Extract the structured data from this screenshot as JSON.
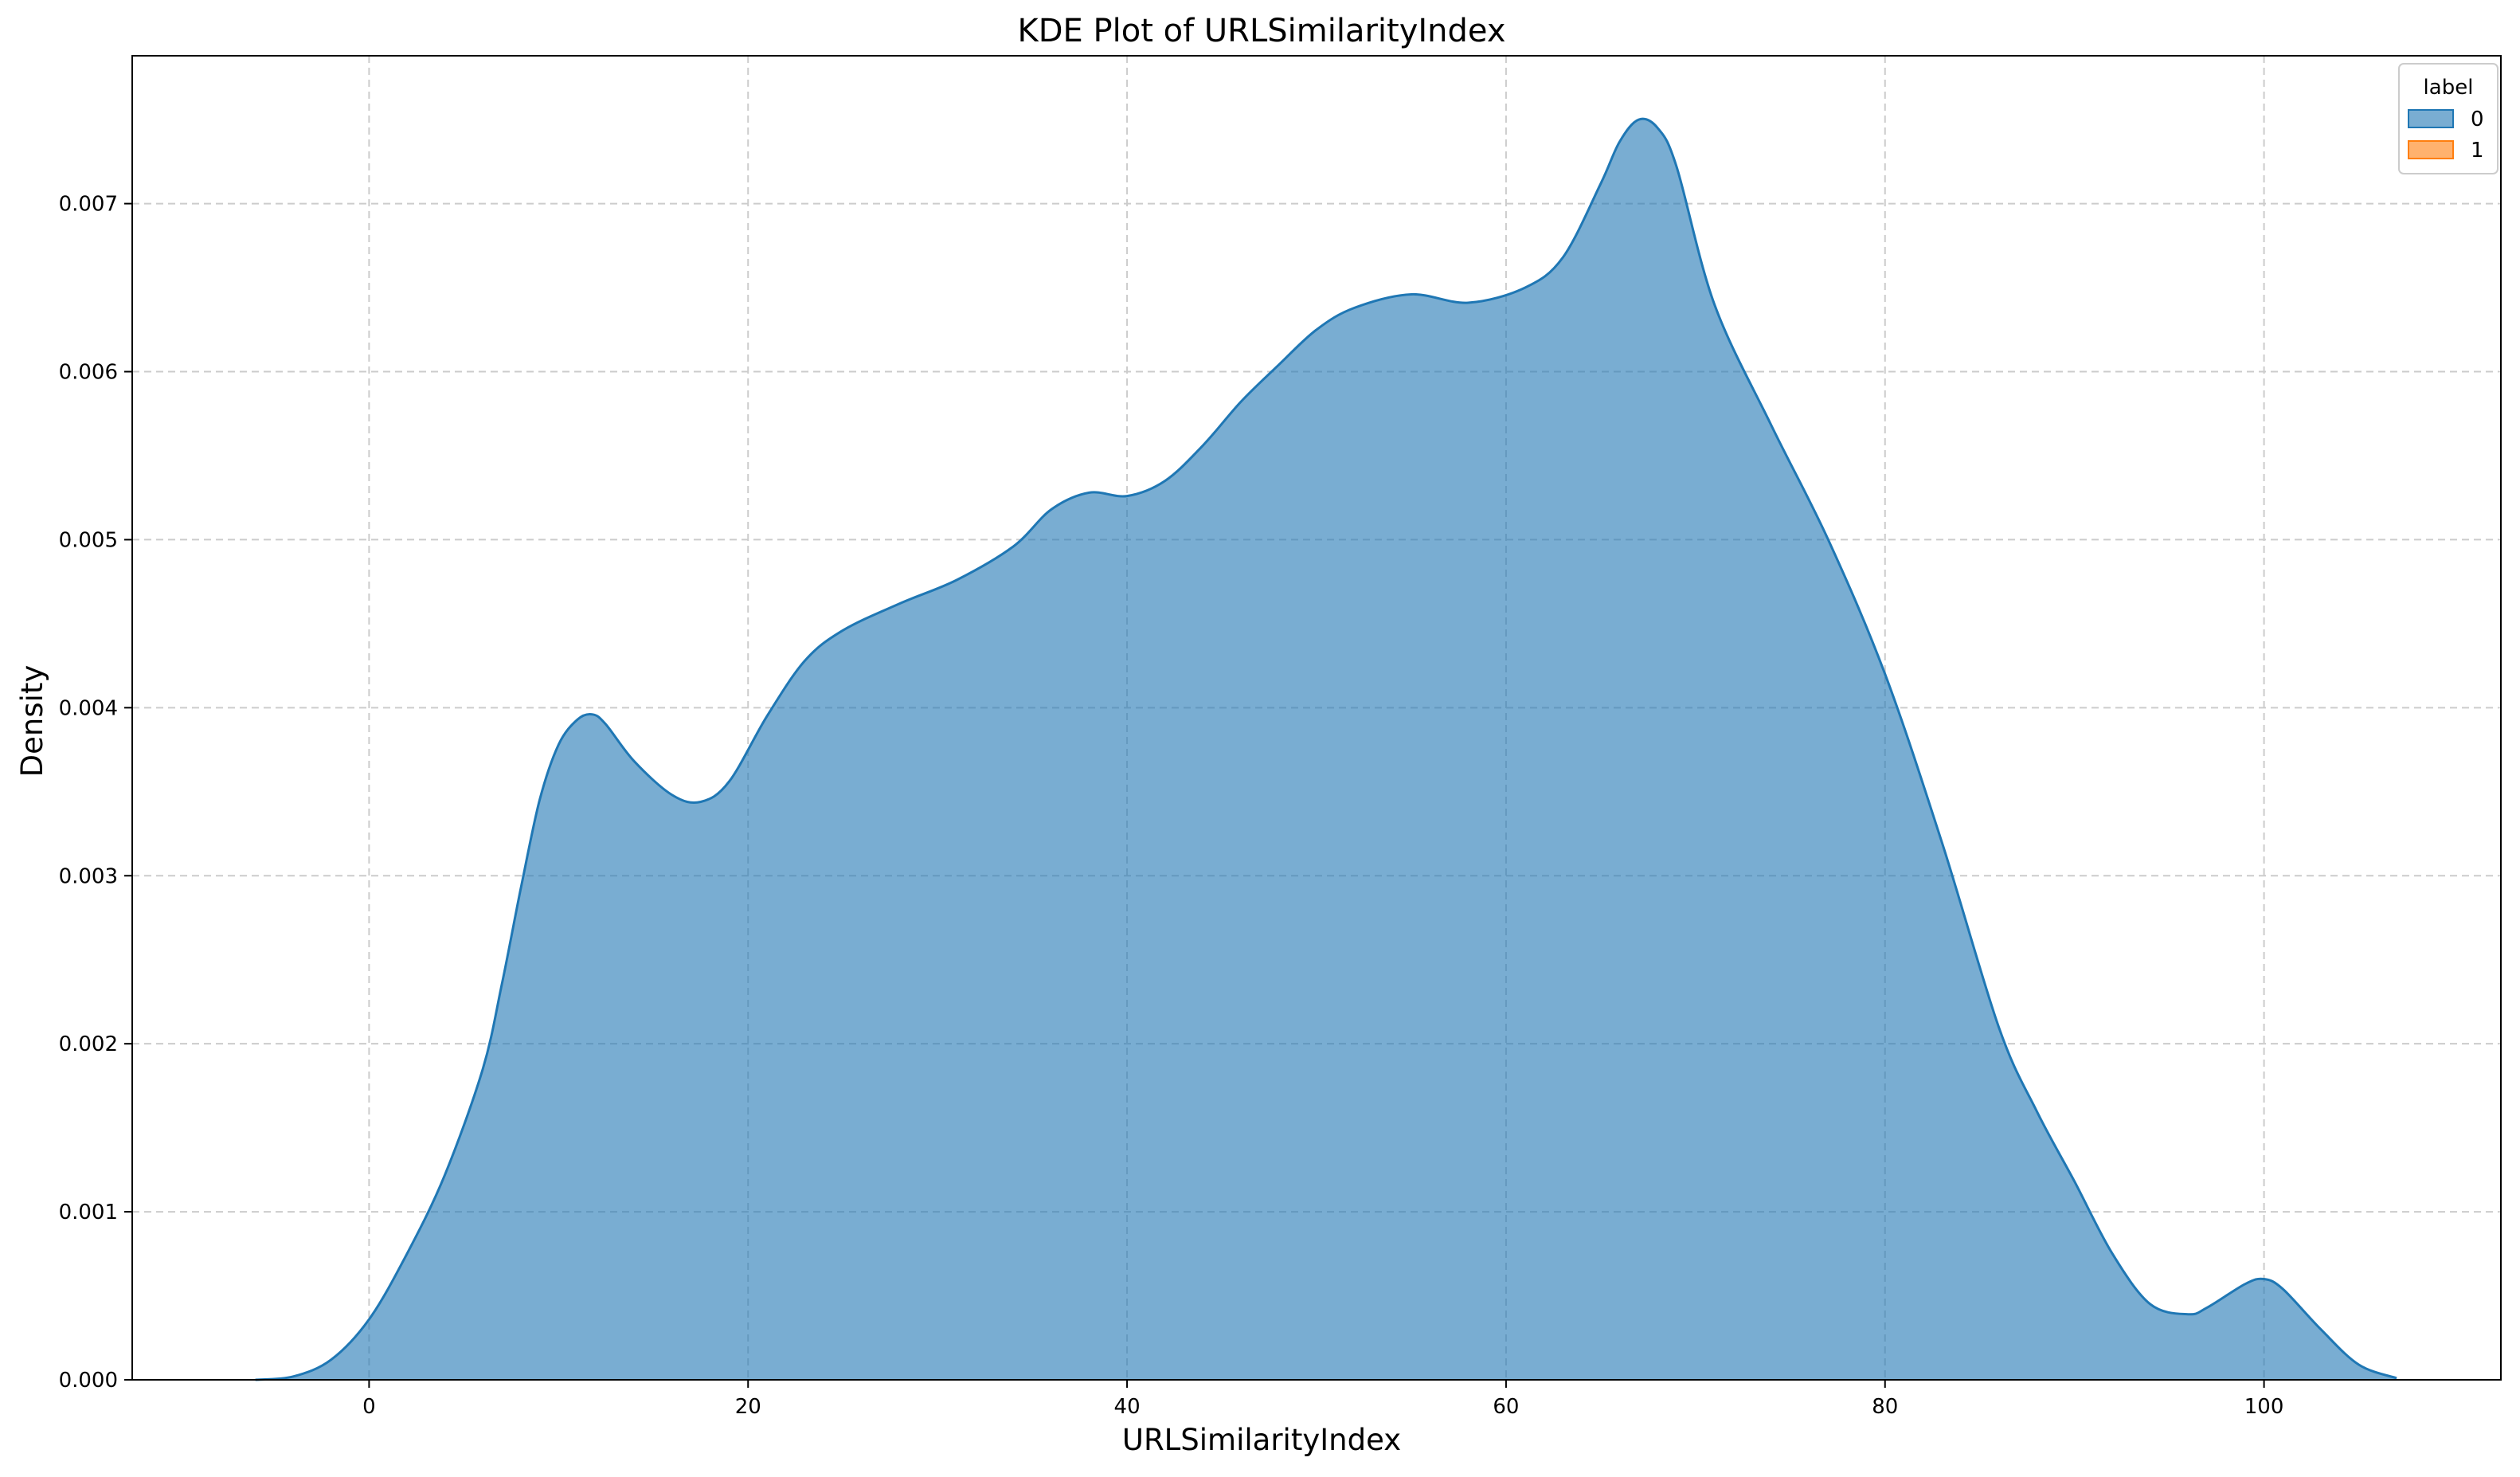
{
  "chart_data": {
    "type": "area",
    "title": "KDE Plot of URLSimilarityIndex",
    "xlabel": "URLSimilarityIndex",
    "ylabel": "Density",
    "xlim": [
      -12.5,
      112.5
    ],
    "ylim": [
      0,
      0.00788
    ],
    "x_ticks": [
      0,
      20,
      40,
      60,
      80,
      100
    ],
    "x_tick_labels": [
      "0",
      "20",
      "40",
      "60",
      "80",
      "100"
    ],
    "y_ticks": [
      0,
      0.001,
      0.002,
      0.003,
      0.004,
      0.005,
      0.006,
      0.007
    ],
    "y_tick_labels": [
      "0.000",
      "0.001",
      "0.002",
      "0.003",
      "0.004",
      "0.005",
      "0.006",
      "0.007"
    ],
    "grid": true,
    "legend": {
      "title": "label",
      "position": "top-right",
      "entries": [
        {
          "label": "0",
          "color": "#1f77b4"
        },
        {
          "label": "1",
          "color": "#ff7f0e"
        }
      ]
    },
    "series": [
      {
        "name": "0",
        "color": "#1f77b4",
        "fill_opacity": 0.6,
        "x": [
          -6,
          -4,
          -2,
          0,
          2,
          4,
          6,
          7,
          8,
          9,
          10,
          11,
          11.8,
          12.5,
          14,
          16,
          17.5,
          19,
          21,
          23,
          25,
          28,
          31,
          34,
          36,
          38,
          40,
          42,
          44,
          46,
          48,
          50,
          52,
          55,
          58,
          61,
          63,
          65,
          66,
          67,
          68,
          69,
          71,
          74,
          77,
          80,
          83,
          86,
          88,
          90,
          92,
          94,
          96,
          97,
          99,
          100,
          101,
          103,
          105,
          107
        ],
        "values": [
          0,
          2e-05,
          0.00012,
          0.00036,
          0.00075,
          0.00122,
          0.00185,
          0.00235,
          0.00292,
          0.00345,
          0.00378,
          0.00393,
          0.00396,
          0.0039,
          0.00368,
          0.00348,
          0.00344,
          0.00356,
          0.00395,
          0.00428,
          0.00446,
          0.00462,
          0.00476,
          0.00496,
          0.00518,
          0.00528,
          0.00526,
          0.00535,
          0.00556,
          0.00582,
          0.00604,
          0.00625,
          0.00638,
          0.00646,
          0.00641,
          0.0065,
          0.00668,
          0.00712,
          0.00737,
          0.0075,
          0.00745,
          0.00722,
          0.0064,
          0.00568,
          0.005,
          0.0042,
          0.0032,
          0.0021,
          0.0016,
          0.00118,
          0.00075,
          0.00045,
          0.00039,
          0.00043,
          0.00057,
          0.0006,
          0.00054,
          0.0003,
          9e-05,
          1e-05
        ]
      },
      {
        "name": "1",
        "color": "#ff7f0e",
        "fill_opacity": 0.6,
        "x": [],
        "values": []
      }
    ]
  }
}
